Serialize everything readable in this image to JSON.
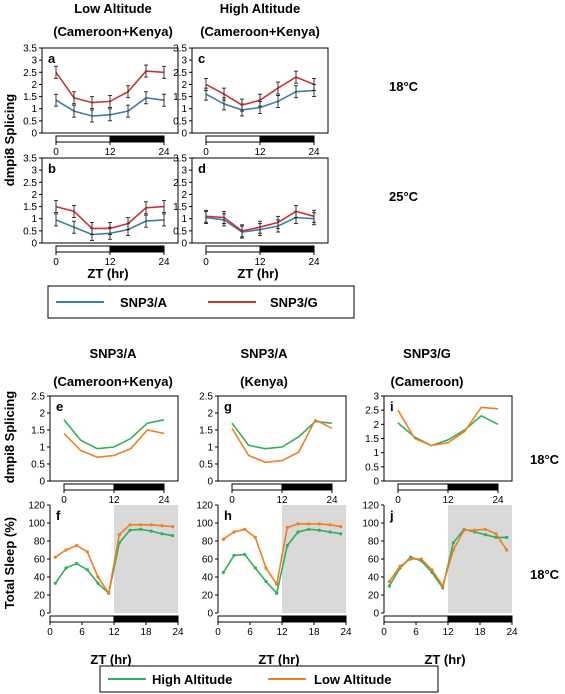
{
  "colors": {
    "snp_a": "#3B7EA8",
    "snp_g": "#CC3333",
    "high": "#2FAF5A",
    "low": "#F07F22",
    "night_shade": "#D9D9D9"
  },
  "top": {
    "col_titles": [
      {
        "line1": "Low Altitude",
        "line2": "(Cameroon+Kenya)"
      },
      {
        "line1": "High Altitude",
        "line2": "(Cameroon+Kenya)"
      }
    ],
    "ylabel": "dmpi8 Splicing",
    "row_temps": [
      "18°C",
      "25°C"
    ],
    "xlabel": "ZT (hr)",
    "legend": [
      "SNP3/A",
      "SNP3/G"
    ]
  },
  "bottom": {
    "col_titles": [
      {
        "line1": "SNP3/A",
        "line2": "(Cameroon+Kenya)"
      },
      {
        "line1": "SNP3/A",
        "line2": "(Kenya)"
      },
      {
        "line1": "SNP3/G",
        "line2": "(Cameroon)"
      }
    ],
    "ylabel_splicing": "dmpi8 Splicing",
    "ylabel_sleep": "Total Sleep (%)",
    "row_temps": [
      "18°C",
      "18°C"
    ],
    "xlabel": "ZT (hr)",
    "legend": [
      "High Altitude",
      "Low Altitude"
    ]
  },
  "chart_data": [
    {
      "panel": "a",
      "type": "line",
      "ylim": [
        0,
        3.5
      ],
      "yticks": [
        "0",
        "0.5",
        "1",
        "1.5",
        "2",
        "2.5",
        "3",
        "3.5"
      ],
      "x": [
        0,
        4,
        8,
        12,
        16,
        20,
        24
      ],
      "xticks": [
        "0",
        "12",
        "24"
      ],
      "series": [
        {
          "name": "SNP3/A",
          "values": [
            1.35,
            0.9,
            0.7,
            0.75,
            0.9,
            1.45,
            1.35
          ]
        },
        {
          "name": "SNP3/G",
          "values": [
            2.5,
            1.45,
            1.25,
            1.3,
            1.7,
            2.55,
            2.5
          ]
        }
      ]
    },
    {
      "panel": "c",
      "type": "line",
      "ylim": [
        0,
        3.5
      ],
      "yticks": [
        "0",
        "0.5",
        "1",
        "1.5",
        "2",
        "2.5",
        "3",
        "3.5"
      ],
      "x": [
        0,
        4,
        8,
        12,
        16,
        20,
        24
      ],
      "xticks": [
        "0",
        "12",
        "24"
      ],
      "series": [
        {
          "name": "SNP3/A",
          "values": [
            1.6,
            1.2,
            0.95,
            1.05,
            1.3,
            1.7,
            1.75
          ]
        },
        {
          "name": "SNP3/G",
          "values": [
            2.0,
            1.6,
            1.15,
            1.35,
            1.85,
            2.3,
            2.0
          ]
        }
      ]
    },
    {
      "panel": "b",
      "type": "line",
      "ylim": [
        0,
        3.5
      ],
      "yticks": [
        "0",
        "0.5",
        "1",
        "1.5",
        "2",
        "2.5",
        "3",
        "3.5"
      ],
      "x": [
        0,
        4,
        8,
        12,
        16,
        20,
        24
      ],
      "xticks": [
        "0",
        "12",
        "24"
      ],
      "series": [
        {
          "name": "SNP3/A",
          "values": [
            0.95,
            0.65,
            0.35,
            0.4,
            0.55,
            0.9,
            0.95
          ]
        },
        {
          "name": "SNP3/G",
          "values": [
            1.5,
            1.3,
            0.6,
            0.6,
            0.8,
            1.45,
            1.5
          ]
        }
      ]
    },
    {
      "panel": "d",
      "type": "line",
      "ylim": [
        0,
        3.5
      ],
      "yticks": [
        "0",
        "0.5",
        "1",
        "1.5",
        "2",
        "2.5",
        "3",
        "3.5"
      ],
      "x": [
        0,
        4,
        8,
        12,
        16,
        20,
        24
      ],
      "xticks": [
        "0",
        "12",
        "24"
      ],
      "series": [
        {
          "name": "SNP3/A",
          "values": [
            1.05,
            0.95,
            0.45,
            0.55,
            0.7,
            1.05,
            1.0
          ]
        },
        {
          "name": "SNP3/G",
          "values": [
            1.1,
            1.05,
            0.5,
            0.65,
            0.85,
            1.3,
            1.1
          ]
        }
      ]
    },
    {
      "panel": "e",
      "type": "line",
      "ylim": [
        0,
        2.5
      ],
      "yticks": [
        "0",
        "0.5",
        "1",
        "1.5",
        "2",
        "2.5"
      ],
      "x": [
        0,
        4,
        8,
        12,
        16,
        20,
        24
      ],
      "xticks": [
        "0",
        "12",
        "24"
      ],
      "series": [
        {
          "name": "High Altitude",
          "values": [
            1.8,
            1.2,
            0.95,
            1.0,
            1.25,
            1.7,
            1.8
          ]
        },
        {
          "name": "Low Altitude",
          "values": [
            1.4,
            0.9,
            0.7,
            0.75,
            0.95,
            1.5,
            1.4
          ]
        }
      ]
    },
    {
      "panel": "g",
      "type": "line",
      "ylim": [
        0,
        2.5
      ],
      "yticks": [
        "0",
        "0.5",
        "1",
        "1.5",
        "2",
        "2.5"
      ],
      "x": [
        0,
        4,
        8,
        12,
        16,
        20,
        24
      ],
      "xticks": [
        "0",
        "12",
        "24"
      ],
      "series": [
        {
          "name": "High Altitude",
          "values": [
            1.7,
            1.05,
            0.95,
            1.0,
            1.3,
            1.75,
            1.7
          ]
        },
        {
          "name": "Low Altitude",
          "values": [
            1.55,
            0.75,
            0.55,
            0.6,
            0.85,
            1.8,
            1.55
          ]
        }
      ]
    },
    {
      "panel": "i",
      "type": "line",
      "ylim": [
        0,
        3
      ],
      "yticks": [
        "0",
        "0.5",
        "1",
        "1.5",
        "2",
        "2.5",
        "3"
      ],
      "x": [
        0,
        4,
        8,
        12,
        16,
        20,
        24
      ],
      "xticks": [
        "0",
        "12",
        "24"
      ],
      "series": [
        {
          "name": "High Altitude",
          "values": [
            2.05,
            1.55,
            1.25,
            1.45,
            1.8,
            2.3,
            2.0
          ]
        },
        {
          "name": "Low Altitude",
          "values": [
            2.5,
            1.5,
            1.25,
            1.35,
            1.75,
            2.6,
            2.55
          ]
        }
      ]
    },
    {
      "panel": "f",
      "type": "line",
      "ylim": [
        0,
        120
      ],
      "yticks": [
        "0",
        "20",
        "40",
        "60",
        "80",
        "100",
        "120"
      ],
      "x": [
        1,
        3,
        5,
        7,
        9,
        11,
        13,
        15,
        17,
        19,
        21,
        23
      ],
      "xticks": [
        "0",
        "6",
        "12",
        "18",
        "24"
      ],
      "series": [
        {
          "name": "High Altitude",
          "values": [
            33,
            50,
            55,
            48,
            33,
            22,
            78,
            92,
            93,
            91,
            88,
            86
          ]
        },
        {
          "name": "Low Altitude",
          "values": [
            62,
            70,
            75,
            68,
            40,
            22,
            87,
            98,
            98,
            98,
            97,
            96
          ]
        }
      ]
    },
    {
      "panel": "h",
      "type": "line",
      "ylim": [
        0,
        120
      ],
      "yticks": [
        "0",
        "20",
        "40",
        "60",
        "80",
        "100",
        "120"
      ],
      "x": [
        1,
        3,
        5,
        7,
        9,
        11,
        13,
        15,
        17,
        19,
        21,
        23
      ],
      "xticks": [
        "0",
        "6",
        "12",
        "18",
        "24"
      ],
      "series": [
        {
          "name": "High Altitude",
          "values": [
            45,
            64,
            65,
            50,
            35,
            22,
            75,
            90,
            93,
            92,
            90,
            88
          ]
        },
        {
          "name": "Low Altitude",
          "values": [
            82,
            90,
            93,
            84,
            50,
            32,
            95,
            99,
            99,
            99,
            98,
            96
          ]
        }
      ]
    },
    {
      "panel": "j",
      "type": "line",
      "ylim": [
        0,
        120
      ],
      "yticks": [
        "0",
        "20",
        "40",
        "60",
        "80",
        "100",
        "120"
      ],
      "x": [
        1,
        3,
        5,
        7,
        9,
        11,
        13,
        15,
        17,
        19,
        21,
        23
      ],
      "xticks": [
        "0",
        "6",
        "12",
        "18",
        "24"
      ],
      "series": [
        {
          "name": "High Altitude",
          "values": [
            30,
            50,
            62,
            58,
            45,
            28,
            78,
            93,
            90,
            87,
            84,
            84
          ]
        },
        {
          "name": "Low Altitude",
          "values": [
            35,
            52,
            60,
            60,
            48,
            30,
            70,
            92,
            92,
            93,
            88,
            70
          ]
        }
      ]
    }
  ]
}
